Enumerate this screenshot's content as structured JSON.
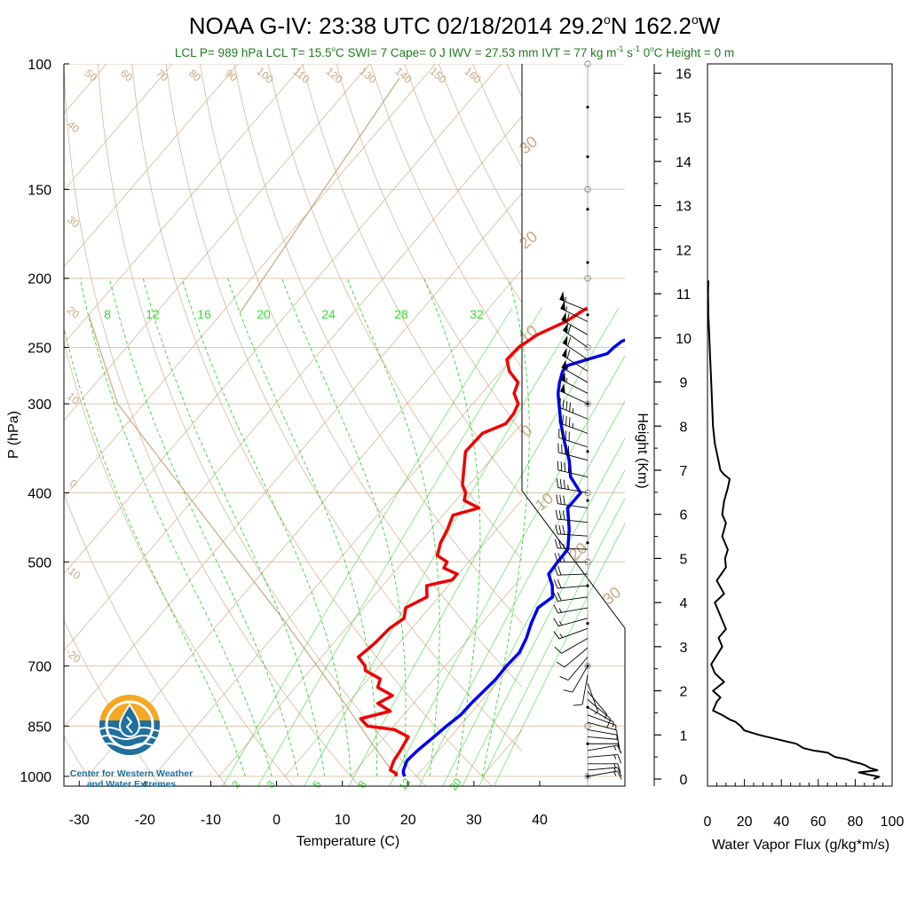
{
  "title_main": "NOAA G-IV: 23:38 UTC 02/18/2014",
  "title_loc_lat": "29.2",
  "title_loc_lat_suffix": "N",
  "title_loc_lon": "162.2",
  "title_loc_lon_suffix": "W",
  "deg_mark": "o",
  "subtitle_a": "LCL P= 989 hPa  LCL T= 15.5",
  "subtitle_a_unit": "C  SWI= 7  Cape= 0 J  IWV = 27.53 mm  IVT = 77 kg m",
  "subtitle_exp1": "-1",
  "subtitle_mid": " s",
  "subtitle_exp2": "-1",
  "subtitle_b": "  0",
  "subtitle_b_unit": "C Height = 0 m",
  "colors": {
    "temperature": "#ee0000",
    "dewpoint": "#0000ee",
    "mixing_ratio": "#22cc22",
    "isotherm": "#c8a882",
    "subtitle": "#1f7a1f",
    "logo_orange": "#f5a623",
    "logo_blue": "#1f6f9f"
  },
  "logo": {
    "icon": "water-drop-sun-icon",
    "line1": "Center for Western Weather",
    "line2": "and Water Extremes"
  },
  "chart_data": [
    {
      "type": "line",
      "chart": "skew-t-log-p",
      "ylabel": "P (hPa)",
      "xlabel": "Temperature (C)",
      "y_scale": "log",
      "ylim": [
        1000,
        100
      ],
      "xlim": [
        -34,
        52
      ],
      "x_ticks": [
        -30,
        -20,
        -10,
        0,
        10,
        20,
        30,
        40
      ],
      "y_ticks": [
        100,
        150,
        200,
        250,
        300,
        400,
        500,
        700,
        850,
        1000
      ],
      "series": [
        {
          "name": "Temperature",
          "p": [
            1000,
            990,
            980,
            950,
            920,
            880,
            860,
            850,
            830,
            810,
            790,
            770,
            750,
            730,
            710,
            700,
            680,
            650,
            620,
            600,
            580,
            560,
            540,
            530,
            520,
            510,
            500,
            490,
            470,
            450,
            430,
            420,
            410,
            400,
            390,
            370,
            350,
            330,
            320,
            310,
            300,
            290,
            280,
            270,
            260,
            250,
            240,
            230,
            220
          ],
          "t": [
            16.9,
            16.5,
            15.2,
            14.5,
            14.2,
            13.6,
            10.6,
            6.0,
            4.0,
            7.5,
            4.6,
            5.8,
            2.5,
            1.8,
            -1.6,
            -2.2,
            -4.4,
            -3.7,
            -3.4,
            -2.5,
            -3.6,
            -1.8,
            -3.3,
            -0.2,
            -0.2,
            -3.0,
            -3.3,
            -5.6,
            -6.8,
            -7.5,
            -8.5,
            -5.5,
            -8.7,
            -9.5,
            -11.0,
            -12.9,
            -14.9,
            -14.7,
            -12.4,
            -12.5,
            -13.1,
            -15.1,
            -15.9,
            -18.7,
            -20.6,
            -20.4,
            -19.2,
            -16.6,
            -15.1
          ]
        },
        {
          "name": "Dewpoint",
          "p": [
            1000,
            990,
            980,
            950,
            920,
            880,
            850,
            820,
            790,
            760,
            730,
            700,
            670,
            640,
            610,
            580,
            560,
            540,
            520,
            500,
            480,
            450,
            420,
            400,
            380,
            360,
            340,
            320,
            300,
            290,
            280,
            270,
            265,
            260,
            255,
            250,
            245,
            240,
            235,
            230,
            225,
            220
          ],
          "t": [
            18.2,
            17.6,
            17.2,
            16.5,
            16.8,
            17.5,
            18.0,
            18.7,
            18.8,
            19.1,
            19.4,
            19.3,
            19.5,
            18.7,
            17.5,
            16.5,
            17.3,
            15.8,
            13.7,
            13.5,
            13.4,
            11.0,
            8.0,
            8.0,
            4.4,
            2.0,
            -1.0,
            -4.0,
            -6.9,
            -8.4,
            -9.6,
            -10.6,
            -10.6,
            -8.4,
            -6.1,
            -5.9,
            -5.5,
            -3.4,
            -1.0,
            -1.0,
            0.9,
            2.2
          ]
        },
        {
          "name": "Water Vapor Flux",
          "xlabel": "Water Vapor Flux (g/kg*m/s)",
          "ylabel": "Height (Km)",
          "xlim": [
            0,
            100
          ],
          "ylim": [
            0,
            16.3
          ],
          "x_ticks": [
            0,
            20,
            40,
            60,
            80,
            100
          ],
          "y_ticks": [
            0,
            1,
            2,
            3,
            4,
            5,
            6,
            7,
            8,
            9,
            10,
            11,
            12,
            13,
            14,
            15,
            16
          ],
          "h": [
            0.0,
            0.05,
            0.1,
            0.15,
            0.2,
            0.25,
            0.3,
            0.35,
            0.4,
            0.45,
            0.5,
            0.6,
            0.65,
            0.7,
            0.8,
            0.9,
            1.0,
            1.05,
            1.1,
            1.2,
            1.3,
            1.35,
            1.45,
            1.55,
            1.65,
            1.75,
            1.85,
            2.0,
            2.2,
            2.4,
            2.6,
            2.8,
            3.0,
            3.2,
            3.4,
            3.6,
            3.8,
            4.0,
            4.2,
            4.5,
            4.8,
            5.0,
            5.2,
            5.5,
            5.8,
            6.0,
            6.3,
            6.6,
            6.8,
            6.9,
            7.0,
            7.2,
            7.6,
            8.0,
            8.5,
            9.0,
            9.5,
            10.0,
            10.5,
            11.0,
            11.3
          ],
          "flux": [
            90.0,
            93.0,
            87.0,
            82.0,
            92.0,
            88.0,
            86.0,
            83.0,
            78.0,
            75.0,
            69.0,
            65.0,
            57.0,
            52.0,
            48.0,
            38.0,
            28.0,
            24.0,
            20.0,
            18.0,
            15.0,
            12.0,
            8.0,
            3.0,
            4.0,
            5.0,
            7.0,
            3.0,
            9.0,
            4.0,
            2.0,
            5.0,
            8.0,
            6.0,
            10.0,
            8.0,
            6.0,
            4.0,
            9.0,
            5.0,
            10.0,
            9.5,
            11.0,
            8.0,
            10.0,
            8.0,
            9.0,
            11.0,
            12.0,
            9.0,
            7.0,
            6.0,
            4.0,
            3.0,
            2.5,
            2.0,
            1.5,
            1.0,
            0.5,
            0.3,
            0.5
          ]
        },
        {
          "name": "Wind",
          "type": "barbs",
          "p": [
            1000,
            980,
            960,
            940,
            920,
            900,
            880,
            860,
            840,
            820,
            800,
            780,
            760,
            740,
            720,
            700,
            680,
            660,
            640,
            620,
            600,
            580,
            560,
            540,
            520,
            500,
            480,
            460,
            440,
            420,
            400,
            380,
            360,
            345,
            330,
            315,
            300,
            290,
            280,
            270,
            260,
            250,
            240,
            230,
            222
          ],
          "wind_dir_deg": [
            80,
            85,
            90,
            85,
            80,
            90,
            95,
            100,
            105,
            110,
            120,
            130,
            140,
            160,
            190,
            210,
            220,
            230,
            240,
            250,
            255,
            260,
            262,
            265,
            268,
            270,
            272,
            274,
            276,
            278,
            280,
            283,
            285,
            288,
            290,
            292,
            295,
            297,
            300,
            302,
            304,
            305,
            300,
            296,
            292
          ],
          "wind_speed_kt": [
            15,
            15,
            18,
            18,
            16,
            14,
            12,
            10,
            10,
            8,
            8,
            10,
            8,
            8,
            10,
            10,
            12,
            12,
            14,
            15,
            16,
            18,
            20,
            22,
            24,
            26,
            28,
            30,
            32,
            34,
            36,
            38,
            40,
            42,
            45,
            48,
            52,
            55,
            58,
            60,
            62,
            64,
            60,
            58,
            55
          ]
        }
      ],
      "mixing_ratio_top_labels": [
        "8",
        "12",
        "16",
        "20",
        "24",
        "28",
        "32"
      ],
      "mixing_ratio_bottom_labels": [
        "2",
        "3",
        "5",
        "8",
        "12",
        "20"
      ],
      "dry_adiabat_labels": [
        "50",
        "60",
        "70",
        "80",
        "90",
        "100",
        "110",
        "120",
        "130",
        "140",
        "150",
        "160",
        "40",
        "30",
        "20",
        "10",
        "0",
        "-10",
        "-20"
      ],
      "right_edge_labels": [
        "30",
        "20",
        "10",
        "0",
        "10",
        "20",
        "30"
      ]
    }
  ]
}
